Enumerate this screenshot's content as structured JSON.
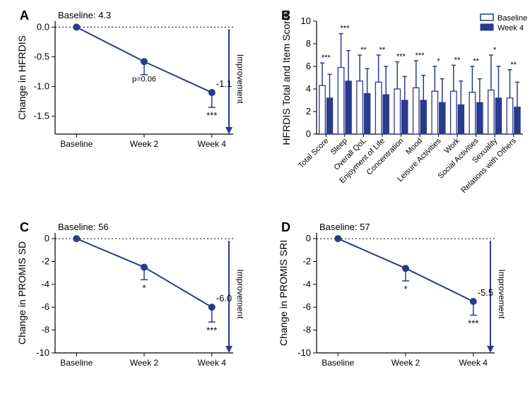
{
  "colors": {
    "series": "#2a3a8c",
    "fill": "#2a3a8c",
    "open_stroke": "#2a3a8c",
    "bg": "#ffffff",
    "text": "#000000"
  },
  "panelA": {
    "label": "A",
    "baseline_text": "Baseline: 4.3",
    "ylabel": "Change in HFRDIS",
    "ylim": [
      -1.8,
      0.1
    ],
    "yticks": [
      {
        "v": 0,
        "l": "0.0"
      },
      {
        "v": -0.5,
        "l": "-0.5"
      },
      {
        "v": -1.0,
        "l": "-1.0"
      },
      {
        "v": -1.5,
        "l": "-1.5"
      }
    ],
    "categories": [
      "Baseline",
      "Week 2",
      "Week 4"
    ],
    "points": [
      {
        "x": 0,
        "y": 0,
        "err": 0
      },
      {
        "x": 1,
        "y": -0.58,
        "err": 0.22,
        "note": "p=0.06"
      },
      {
        "x": 2,
        "y": -1.1,
        "err": 0.25,
        "val": "-1.1",
        "sig": "***"
      }
    ],
    "improvement": "Improvement"
  },
  "panelB": {
    "label": "B",
    "ylabel": "HFRDIS Total and Item Scores",
    "ylim": [
      0,
      10
    ],
    "yticks": [
      0,
      2,
      4,
      6,
      8,
      10
    ],
    "legend": {
      "baseline": "Baseline",
      "week4": "Week 4"
    },
    "categories": [
      "Total Score",
      "Sleep",
      "Overall QoL",
      "Enjoyment of Life",
      "Concentration",
      "Mood",
      "Leisure Activities",
      "Work",
      "Social Activities",
      "Sexuality",
      "Relations with Others"
    ],
    "baseline": [
      {
        "v": 4.3,
        "e": 2.0
      },
      {
        "v": 5.9,
        "e": 3.0
      },
      {
        "v": 4.7,
        "e": 2.3
      },
      {
        "v": 4.6,
        "e": 2.4
      },
      {
        "v": 4.0,
        "e": 2.4
      },
      {
        "v": 4.1,
        "e": 2.4
      },
      {
        "v": 3.8,
        "e": 2.2
      },
      {
        "v": 3.8,
        "e": 2.3
      },
      {
        "v": 3.7,
        "e": 2.3
      },
      {
        "v": 3.9,
        "e": 3.1
      },
      {
        "v": 3.2,
        "e": 2.5
      }
    ],
    "week4": [
      {
        "v": 3.2,
        "e": 2.1
      },
      {
        "v": 4.7,
        "e": 2.7
      },
      {
        "v": 3.6,
        "e": 2.2
      },
      {
        "v": 3.5,
        "e": 2.5
      },
      {
        "v": 3.0,
        "e": 2.1
      },
      {
        "v": 3.0,
        "e": 2.2
      },
      {
        "v": 2.8,
        "e": 2.1
      },
      {
        "v": 2.6,
        "e": 2.1
      },
      {
        "v": 2.8,
        "e": 2.1
      },
      {
        "v": 3.2,
        "e": 2.8
      },
      {
        "v": 2.4,
        "e": 2.2
      }
    ],
    "sig": [
      "***",
      "***",
      "**",
      "**",
      "***",
      "***",
      "*",
      "**",
      "**",
      "*",
      "**"
    ]
  },
  "panelC": {
    "label": "C",
    "baseline_text": "Baseline: 56",
    "ylabel": "Change in PROMIS SD",
    "ylim": [
      -10,
      0.5
    ],
    "yticks": [
      {
        "v": 0,
        "l": "0"
      },
      {
        "v": -2,
        "l": "-2"
      },
      {
        "v": -4,
        "l": "-4"
      },
      {
        "v": -6,
        "l": "-6"
      },
      {
        "v": -8,
        "l": "-8"
      },
      {
        "v": -10,
        "l": "-10"
      }
    ],
    "categories": [
      "Baseline",
      "Week 2",
      "Week 4"
    ],
    "points": [
      {
        "x": 0,
        "y": 0,
        "err": 0
      },
      {
        "x": 1,
        "y": -2.5,
        "err": 1.1,
        "sig": "*"
      },
      {
        "x": 2,
        "y": -6.0,
        "err": 1.3,
        "val": "-6.0",
        "sig": "***"
      }
    ],
    "improvement": "Improvement"
  },
  "panelD": {
    "label": "D",
    "baseline_text": "Baseline: 57",
    "ylabel": "Change in PROMIS SRI",
    "ylim": [
      -10,
      0.5
    ],
    "yticks": [
      {
        "v": 0,
        "l": "0"
      },
      {
        "v": -2,
        "l": "-2"
      },
      {
        "v": -4,
        "l": "-4"
      },
      {
        "v": -6,
        "l": "-6"
      },
      {
        "v": -8,
        "l": "-8"
      },
      {
        "v": -10,
        "l": "-10"
      }
    ],
    "categories": [
      "Baseline",
      "Week 2",
      "Week 4"
    ],
    "points": [
      {
        "x": 0,
        "y": 0,
        "err": 0
      },
      {
        "x": 1,
        "y": -2.6,
        "err": 1.1,
        "sig": "*"
      },
      {
        "x": 2,
        "y": -5.5,
        "err": 1.2,
        "val": "-5.5",
        "sig": "***"
      }
    ],
    "improvement": "Improvement"
  }
}
